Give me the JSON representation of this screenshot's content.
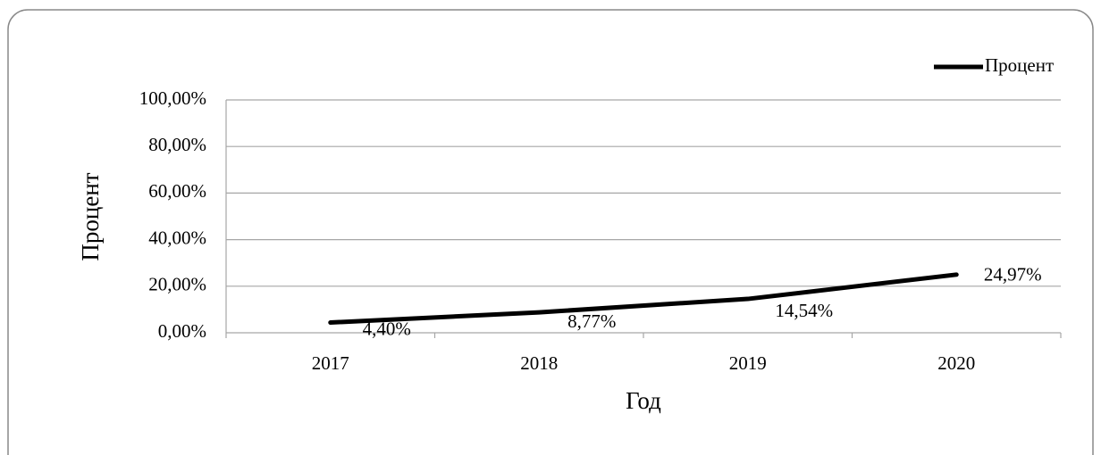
{
  "chart_data": {
    "type": "line",
    "xlabel": "Год",
    "ylabel": "Процент",
    "categories": [
      "2017",
      "2018",
      "2019",
      "2020"
    ],
    "series": [
      {
        "name": "Процент",
        "color": "#000000",
        "values": [
          4.4,
          8.77,
          14.54,
          24.97
        ],
        "value_labels": [
          "4,40%",
          "8,77%",
          "14,54%",
          "24,97%"
        ]
      }
    ],
    "ylim": [
      0,
      100
    ],
    "yticks": [
      {
        "value": 0,
        "label": "0,00%"
      },
      {
        "value": 20,
        "label": "20,00%"
      },
      {
        "value": 40,
        "label": "40,00%"
      },
      {
        "value": 60,
        "label": "60,00%"
      },
      {
        "value": 80,
        "label": "80,00%"
      },
      {
        "value": 100,
        "label": "100,00%"
      }
    ],
    "grid": true,
    "legend": "top-right"
  }
}
